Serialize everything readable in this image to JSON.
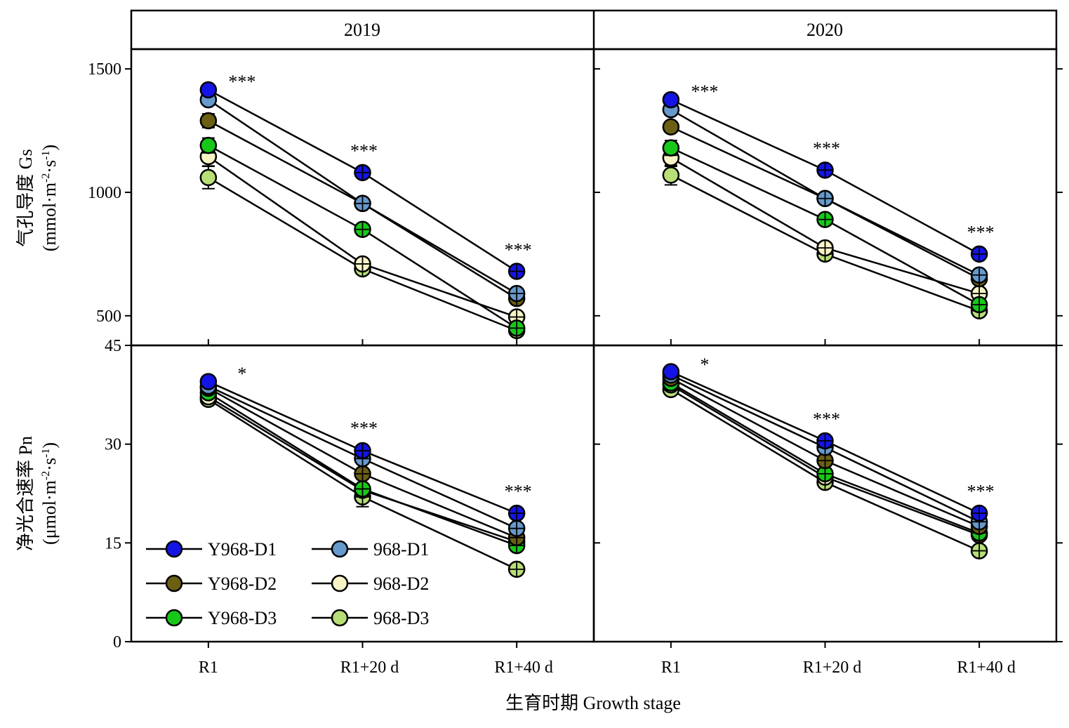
{
  "chart_data": {
    "type": "line",
    "x_axis": {
      "title": "生育时期 Growth stage",
      "categories": [
        "R1",
        "R1+20 d",
        "R1+40 d"
      ]
    },
    "facets": [
      "2019",
      "2020"
    ],
    "legend": {
      "placement": "bottom-left of lower-left panel",
      "entries": [
        {
          "name": "Y968-D1",
          "color": "#1414e6"
        },
        {
          "name": "968-D1",
          "color": "#6699cc"
        },
        {
          "name": "Y968-D2",
          "color": "#6b5f13"
        },
        {
          "name": "968-D2",
          "color": "#f8f4c6"
        },
        {
          "name": "Y968-D3",
          "color": "#18c818"
        },
        {
          "name": "968-D3",
          "color": "#b8de78"
        }
      ]
    },
    "panels": [
      {
        "row": 0,
        "ylabel_line1": "气孔导度 Gs",
        "ylabel_line2": "(mmol·m",
        "ylabel_sup1": "-2",
        "ylabel_mid": "·s",
        "ylabel_sup2": "-1",
        "ylabel_end": ")",
        "ylim": [
          380,
          1580
        ],
        "yticks": [
          {
            "value": 500,
            "label": "500"
          },
          {
            "value": 1000,
            "label": "1000"
          },
          {
            "value": 1500,
            "label": "1500"
          }
        ],
        "facets": [
          {
            "year": "2019",
            "significance": [
              "***",
              "***",
              "***"
            ],
            "series": [
              {
                "name": "968-D3",
                "values": [
                  1060,
                  690,
                  440
                ],
                "err": [
                  45,
                  12,
                  12
                ]
              },
              {
                "name": "968-D2",
                "values": [
                  1145,
                  710,
                  495
                ],
                "err": [
                  38,
                  12,
                  12
                ]
              },
              {
                "name": "Y968-D3",
                "values": [
                  1190,
                  850,
                  450
                ],
                "err": [
                  30,
                  12,
                  12
                ]
              },
              {
                "name": "Y968-D2",
                "values": [
                  1290,
                  955,
                  570
                ],
                "err": [
                  28,
                  12,
                  12
                ]
              },
              {
                "name": "968-D1",
                "values": [
                  1375,
                  955,
                  590
                ],
                "err": [
                  20,
                  12,
                  12
                ]
              },
              {
                "name": "Y968-D1",
                "values": [
                  1415,
                  1080,
                  680
                ],
                "err": [
                  15,
                  12,
                  12
                ]
              }
            ]
          },
          {
            "year": "2020",
            "significance": [
              "***",
              "***",
              "***"
            ],
            "series": [
              {
                "name": "968-D3",
                "values": [
                  1070,
                  750,
                  520
                ],
                "err": [
                  40,
                  12,
                  12
                ]
              },
              {
                "name": "968-D2",
                "values": [
                  1140,
                  775,
                  590
                ],
                "err": [
                  35,
                  12,
                  12
                ]
              },
              {
                "name": "Y968-D3",
                "values": [
                  1180,
                  890,
                  545
                ],
                "err": [
                  30,
                  12,
                  12
                ]
              },
              {
                "name": "Y968-D2",
                "values": [
                  1265,
                  975,
                  650
                ],
                "err": [
                  22,
                  12,
                  12
                ]
              },
              {
                "name": "968-D1",
                "values": [
                  1335,
                  975,
                  665
                ],
                "err": [
                  18,
                  12,
                  12
                ]
              },
              {
                "name": "Y968-D1",
                "values": [
                  1375,
                  1090,
                  750
                ],
                "err": [
                  15,
                  12,
                  12
                ]
              }
            ]
          }
        ]
      },
      {
        "row": 1,
        "ylabel_line1": "净光合速率 Pn",
        "ylabel_line2": "(μmol·m",
        "ylabel_sup1": "-2",
        "ylabel_mid": "·s",
        "ylabel_sup2": "-1",
        "ylabel_end": ")",
        "ylim": [
          0,
          45
        ],
        "yticks": [
          {
            "value": 0,
            "label": "0"
          },
          {
            "value": 15,
            "label": "15"
          },
          {
            "value": 30,
            "label": "30"
          },
          {
            "value": 45,
            "label": "45"
          }
        ],
        "facets": [
          {
            "year": "2019",
            "significance": [
              "*",
              "***",
              "***"
            ],
            "series": [
              {
                "name": "968-D3",
                "values": [
                  36.8,
                  22.0,
                  11.0
                ],
                "err": [
                  0.8,
                  1.5,
                  0.5
                ]
              },
              {
                "name": "968-D2",
                "values": [
                  37.2,
                  23.0,
                  15.2
                ],
                "err": [
                  0.8,
                  1.0,
                  0.5
                ]
              },
              {
                "name": "Y968-D3",
                "values": [
                  37.8,
                  23.2,
                  14.6
                ],
                "err": [
                  0.8,
                  0.8,
                  0.5
                ]
              },
              {
                "name": "Y968-D2",
                "values": [
                  38.5,
                  25.5,
                  15.8
                ],
                "err": [
                  0.7,
                  0.8,
                  0.5
                ]
              },
              {
                "name": "968-D1",
                "values": [
                  38.8,
                  27.8,
                  17.2
                ],
                "err": [
                  0.6,
                  0.8,
                  0.5
                ]
              },
              {
                "name": "Y968-D1",
                "values": [
                  39.5,
                  29.0,
                  19.5
                ],
                "err": [
                  0.5,
                  0.6,
                  0.5
                ]
              }
            ]
          },
          {
            "year": "2020",
            "significance": [
              "*",
              "***",
              "***"
            ],
            "series": [
              {
                "name": "968-D3",
                "values": [
                  38.3,
                  24.2,
                  13.8
                ],
                "err": [
                  0.6,
                  0.8,
                  0.5
                ]
              },
              {
                "name": "968-D2",
                "values": [
                  39.0,
                  25.0,
                  16.2
                ],
                "err": [
                  0.5,
                  0.8,
                  0.5
                ]
              },
              {
                "name": "Y968-D3",
                "values": [
                  39.3,
                  25.5,
                  16.5
                ],
                "err": [
                  0.5,
                  0.7,
                  0.5
                ]
              },
              {
                "name": "Y968-D2",
                "values": [
                  40.0,
                  27.5,
                  17.5
                ],
                "err": [
                  0.5,
                  0.7,
                  0.5
                ]
              },
              {
                "name": "968-D1",
                "values": [
                  40.5,
                  29.5,
                  18.2
                ],
                "err": [
                  0.5,
                  0.6,
                  0.5
                ]
              },
              {
                "name": "Y968-D1",
                "values": [
                  41.0,
                  30.5,
                  19.5
                ],
                "err": [
                  0.4,
                  0.5,
                  0.5
                ]
              }
            ]
          }
        ]
      }
    ]
  }
}
